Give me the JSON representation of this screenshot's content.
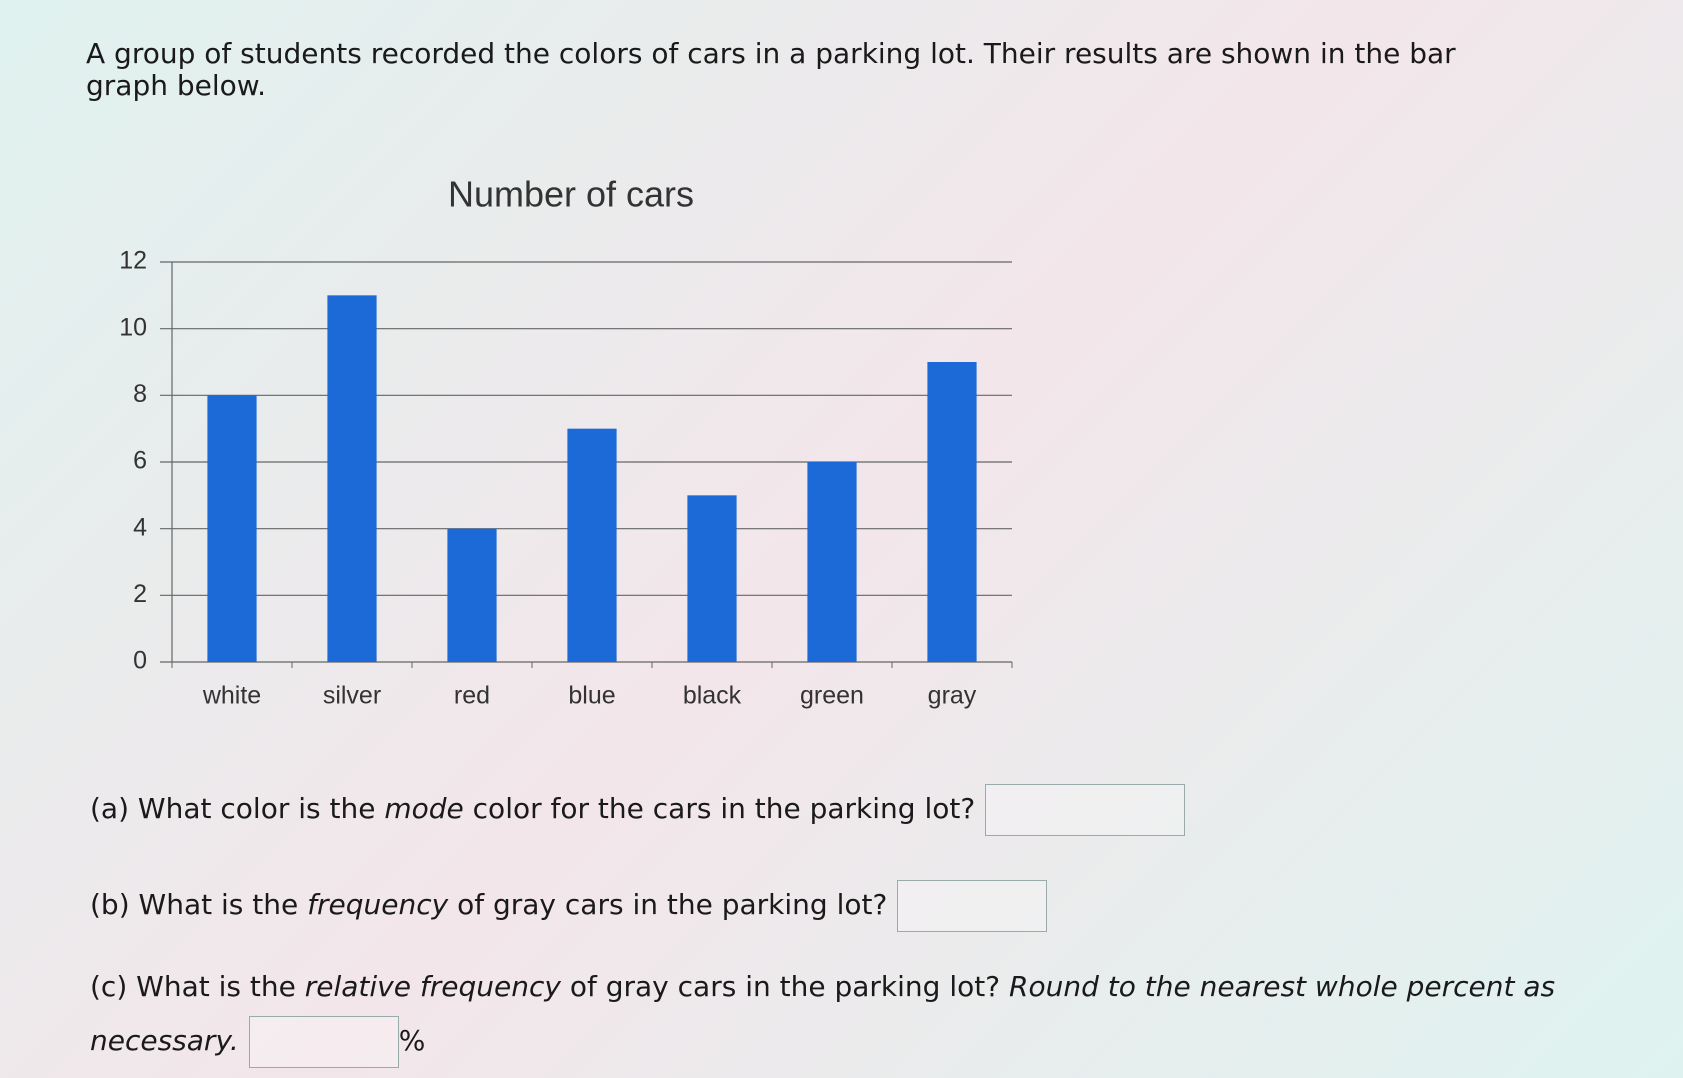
{
  "intro": "A group of students recorded the colors of cars in a parking lot. Their results are shown in the bar graph below.",
  "chart_data": {
    "type": "bar",
    "title": "Number of cars",
    "categories": [
      "white",
      "silver",
      "red",
      "blue",
      "black",
      "green",
      "gray"
    ],
    "values": [
      8,
      11,
      4,
      7,
      5,
      6,
      9
    ],
    "color": "#1c6ad8",
    "ylim": [
      0,
      12
    ],
    "yticks": [
      0,
      2,
      4,
      6,
      8,
      10,
      12
    ],
    "grid": true
  },
  "questions": [
    {
      "label": "(a)",
      "parts": [
        "What color is the ",
        "mode",
        " color for the cars in the parking lot?"
      ]
    },
    {
      "label": "(b)",
      "parts": [
        "What is the ",
        "frequency",
        " of gray cars in the parking lot?"
      ]
    },
    {
      "label": "(c)",
      "parts": [
        "What is the ",
        "relative frequency",
        " of gray cars in the parking lot? ",
        "Round to the nearest whole percent as necessary."
      ],
      "unit": "%"
    }
  ]
}
